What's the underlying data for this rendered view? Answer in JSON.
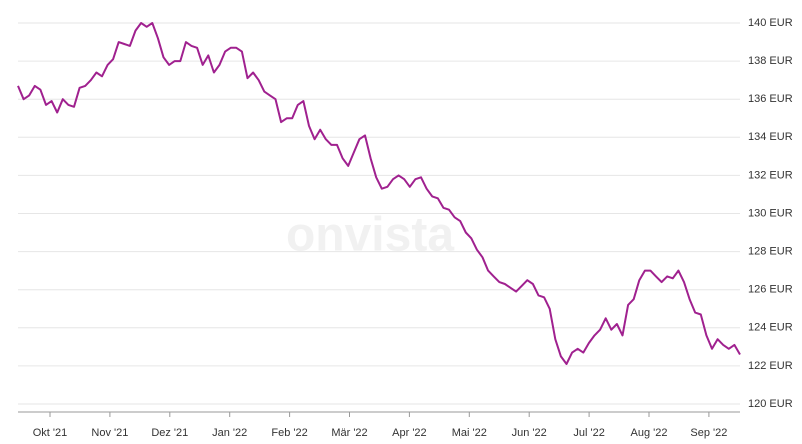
{
  "chart_data": {
    "type": "line",
    "watermark": "onvista",
    "x_tick_labels": [
      "Okt '21",
      "Nov '21",
      "Dez '21",
      "Jan '22",
      "Feb '22",
      "Mär '22",
      "Apr '22",
      "Mai '22",
      "Jun '22",
      "Jul '22",
      "Aug '22",
      "Sep '22"
    ],
    "series": [
      {
        "color": "#a0218f",
        "values": [
          136.7,
          136.0,
          136.2,
          136.7,
          136.5,
          135.7,
          135.9,
          135.3,
          136.0,
          135.7,
          135.6,
          136.6,
          136.7,
          137.0,
          137.4,
          137.2,
          137.8,
          138.1,
          139.0,
          138.9,
          138.8,
          139.6,
          140.0,
          139.8,
          140.0,
          139.2,
          138.2,
          137.8,
          138.0,
          138.0,
          139.0,
          138.8,
          138.7,
          137.8,
          138.3,
          137.4,
          137.8,
          138.5,
          138.7,
          138.7,
          138.5,
          137.1,
          137.4,
          137.0,
          136.4,
          136.2,
          136.0,
          134.8,
          135.0,
          135.0,
          135.7,
          135.9,
          134.6,
          133.9,
          134.4,
          133.9,
          133.6,
          133.6,
          132.9,
          132.5,
          133.2,
          133.9,
          134.1,
          132.9,
          131.9,
          131.3,
          131.4,
          131.8,
          132.0,
          131.8,
          131.4,
          131.8,
          131.9,
          131.3,
          130.9,
          130.8,
          130.3,
          130.2,
          129.8,
          129.6,
          129.0,
          128.7,
          128.1,
          127.7,
          127.0,
          126.7,
          126.4,
          126.3,
          126.1,
          125.9,
          126.2,
          126.5,
          126.3,
          125.7,
          125.6,
          125.0,
          123.4,
          122.5,
          122.1,
          122.7,
          122.9,
          122.7,
          123.2,
          123.6,
          123.9,
          124.5,
          123.9,
          124.2,
          123.6,
          125.2,
          125.5,
          126.5,
          127.0,
          127.0,
          126.7,
          126.4,
          126.7,
          126.6,
          127.0,
          126.4,
          125.5,
          124.8,
          124.7,
          123.6,
          122.9,
          123.4,
          123.1,
          122.9,
          123.1,
          122.6
        ]
      }
    ],
    "ylim": [
      120,
      140
    ],
    "yticks": [
      {
        "value": 120,
        "label": "120 EUR"
      },
      {
        "value": 122,
        "label": "122 EUR"
      },
      {
        "value": 124,
        "label": "124 EUR"
      },
      {
        "value": 126,
        "label": "126 EUR"
      },
      {
        "value": 128,
        "label": "128 EUR"
      },
      {
        "value": 130,
        "label": "130 EUR"
      },
      {
        "value": 132,
        "label": "132 EUR"
      },
      {
        "value": 134,
        "label": "134 EUR"
      },
      {
        "value": 136,
        "label": "136 EUR"
      },
      {
        "value": 138,
        "label": "138 EUR"
      },
      {
        "value": 140,
        "label": "140 EUR"
      }
    ],
    "grid": true
  }
}
